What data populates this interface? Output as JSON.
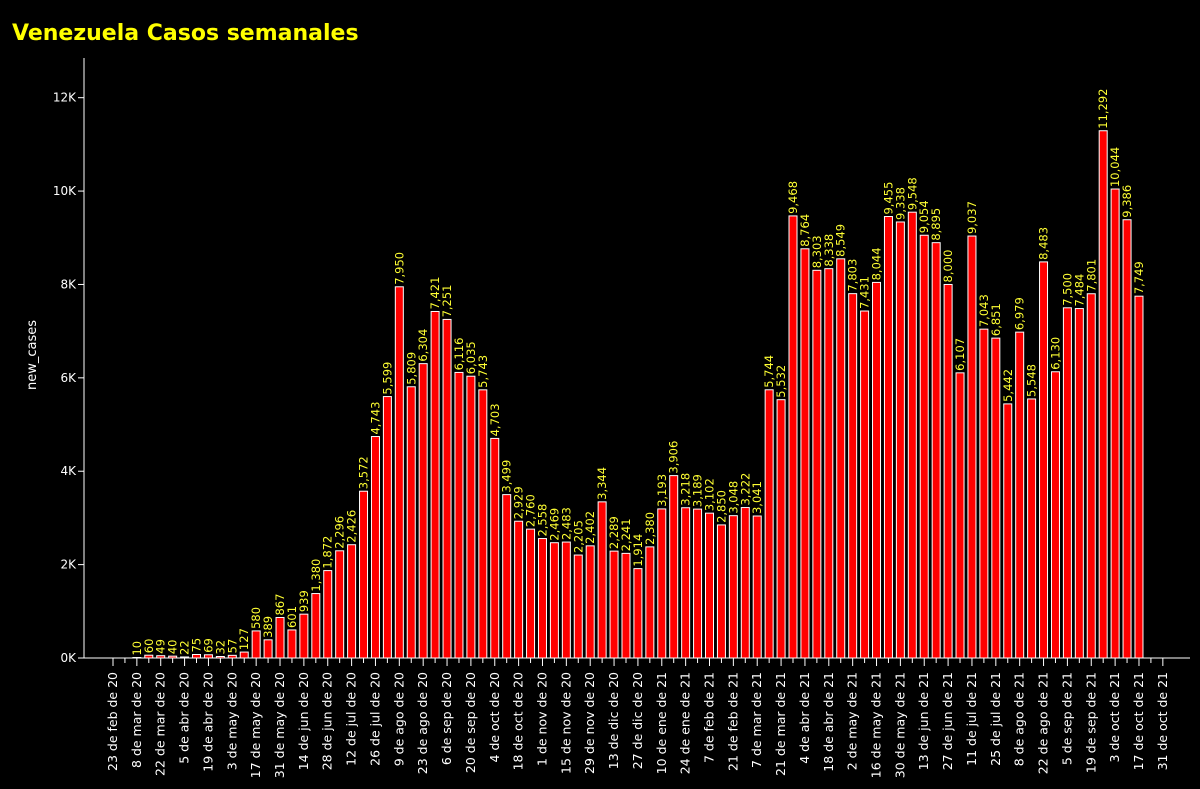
{
  "chart_data": {
    "type": "bar",
    "title": "Venezuela Casos semanales",
    "y_label": "new_cases",
    "categories": [
      "23 de feb de 20",
      null,
      "8 de mar de 20",
      null,
      "22 de mar de 20",
      null,
      "5 de abr de 20",
      null,
      "19 de abr de 20",
      null,
      "3 de may de 20",
      null,
      "17 de may de 20",
      null,
      "31 de may de 20",
      null,
      "14 de jun de 20",
      null,
      "28 de jun de 20",
      null,
      "12 de jul de 20",
      null,
      "26 de jul de 20",
      null,
      "9 de ago de 20",
      null,
      "23 de ago de 20",
      null,
      "6 de sep de 20",
      null,
      "20 de sep de 20",
      null,
      "4 de oct de 20",
      null,
      "18 de oct de 20",
      null,
      "1 de nov de 20",
      null,
      "15 de nov de 20",
      null,
      "29 de nov de 20",
      null,
      "13 de dic de 20",
      null,
      "27 de dic de 20",
      null,
      "10 de ene de 21",
      null,
      "24 de ene de 21",
      null,
      "7 de feb de 21",
      null,
      "21 de feb de 21",
      null,
      "7 de mar de 21",
      null,
      "21 de mar de 21",
      null,
      "4 de abr de 21",
      null,
      "18 de abr de 21",
      null,
      "2 de may de 21",
      null,
      "16 de may de 21",
      null,
      "30 de may de 21",
      null,
      "13 de jun de 21",
      null,
      "27 de jun de 21",
      null,
      "11 de jul de 21",
      null,
      "25 de jul de 21",
      null,
      "8 de ago de 21",
      null,
      "22 de ago de 21",
      null,
      "5 de sep de 21",
      null,
      "19 de sep de 21",
      null,
      "3 de oct de 21",
      null,
      "17 de oct de 21",
      null,
      "31 de oct de 21"
    ],
    "values": [
      null,
      null,
      10,
      60,
      49,
      40,
      22,
      75,
      69,
      32,
      57,
      127,
      580,
      389,
      867,
      601,
      939,
      1380,
      1872,
      2296,
      2426,
      3572,
      4743,
      5599,
      7950,
      5809,
      6304,
      7421,
      7251,
      6116,
      6035,
      5743,
      4703,
      3499,
      2929,
      2760,
      2558,
      2469,
      2483,
      2205,
      2402,
      3344,
      2289,
      2241,
      1914,
      2380,
      3193,
      3906,
      3218,
      3189,
      3102,
      2850,
      3048,
      3222,
      3041,
      5744,
      5532,
      9468,
      8764,
      8303,
      8338,
      8549,
      7803,
      7431,
      8044,
      9455,
      9338,
      9548,
      9054,
      8895,
      8000,
      6107,
      9037,
      7043,
      6851,
      5442,
      6979,
      5548,
      8483,
      6130,
      7500,
      7484,
      7801,
      11292,
      10044,
      9386,
      7749,
      null,
      null
    ],
    "value_labels": [
      null,
      null,
      "10",
      "60",
      "49",
      "40",
      "22",
      "75",
      "69",
      "32",
      "57",
      "127",
      "580",
      "389",
      "867",
      "601",
      "939",
      "1,380",
      "1,872",
      "2,296",
      "2,426",
      "3,572",
      "4,743",
      "5,599",
      "7,950",
      "5,809",
      "6,304",
      "7,421",
      "7,251",
      "6,116",
      "6,035",
      "5,743",
      "4,703",
      "3,499",
      "2,929",
      "2,760",
      "2,558",
      "2,469",
      "2,483",
      "2,205",
      "2,402",
      "3,344",
      "2,289",
      "2,241",
      "1,914",
      "2,380",
      "3,193",
      "3,906",
      "3,218",
      "3,189",
      "3,102",
      "2,850",
      "3,048",
      "3,222",
      "3,041",
      "5,744",
      "5,532",
      "9,468",
      "8,764",
      "8,303",
      "8,338",
      "8,549",
      "7,803",
      "7,431",
      "8,044",
      "9,455",
      "9,338",
      "9,548",
      "9,054",
      "8,895",
      "8,000",
      "6,107",
      "9,037",
      "7,043",
      "6,851",
      "5,442",
      "6,979",
      "5,548",
      "8,483",
      "6,130",
      "7,500",
      "7,484",
      "7,801",
      "11,292",
      "10,044",
      "9,386",
      "7,749",
      null,
      null
    ],
    "color": "#ff0000",
    "label_color": "#ffff33",
    "ylim": [
      0,
      12850
    ],
    "yticks": [
      {
        "value": 0,
        "label": "0K"
      },
      {
        "value": 2000,
        "label": "2K"
      },
      {
        "value": 4000,
        "label": "4K"
      },
      {
        "value": 6000,
        "label": "6K"
      },
      {
        "value": 8000,
        "label": "8K"
      },
      {
        "value": 10000,
        "label": "10K"
      },
      {
        "value": 12000,
        "label": "12K"
      }
    ]
  }
}
